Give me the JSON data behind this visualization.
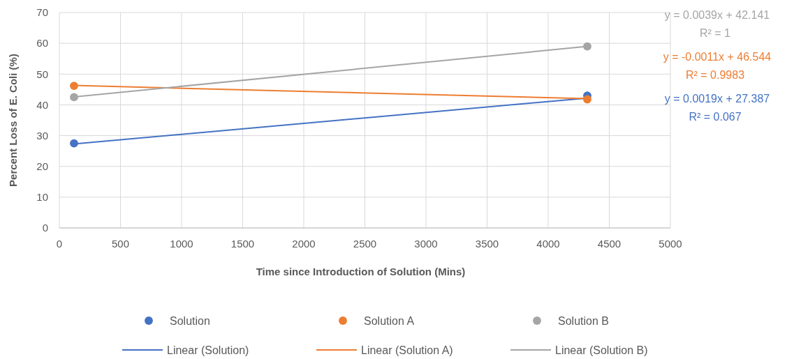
{
  "chart_data": {
    "type": "scatter",
    "xlabel": "Time since Introduction of Solution (Mins)",
    "ylabel": "Percent Loss of E. Coli (%)",
    "xlim": [
      0,
      5000
    ],
    "xticks": [
      0,
      500,
      1000,
      1500,
      2000,
      2500,
      3000,
      3500,
      4000,
      4500,
      5000
    ],
    "ylim": [
      0,
      70
    ],
    "yticks": [
      0,
      10,
      20,
      30,
      40,
      50,
      60,
      70
    ],
    "grid": true,
    "legend": "bottom",
    "marker": "circle",
    "x": [
      120,
      4320
    ],
    "series": [
      {
        "name": "Solution",
        "color": "#4472c4",
        "values": [
          27.5,
          43
        ]
      },
      {
        "name": "Solution A",
        "color": "#ed7d31",
        "values": [
          46.2,
          41.8
        ]
      },
      {
        "name": "Solution B",
        "color": "#a5a5a5",
        "values": [
          42.5,
          59
        ]
      },
      {
        "name": "Linear (Solution)",
        "type": "line",
        "marker": "none",
        "color": "#4472c4",
        "values": [
          27.3,
          42.2
        ]
      },
      {
        "name": "Linear (Solution A)",
        "type": "line",
        "marker": "none",
        "color": "#ed7d31",
        "values": [
          46.3,
          42
        ]
      },
      {
        "name": "Linear (Solution B)",
        "type": "line",
        "marker": "none",
        "color": "#a5a5a5",
        "values": [
          42.6,
          59
        ]
      }
    ],
    "annotations": [
      "y = 0.0039x + 42.141",
      "R² = 1",
      "y = -0.0011x + 46.544",
      "R² = 0.9983",
      "y = 0.0019x + 27.387",
      "R² = 0.067"
    ]
  }
}
